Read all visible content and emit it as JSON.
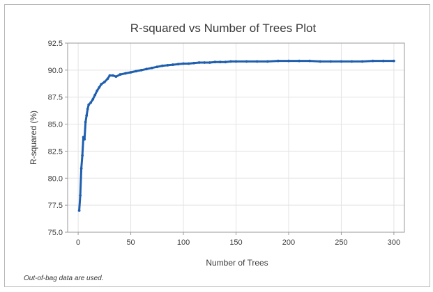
{
  "colors": {
    "series": "#1f5fae",
    "grid": "#e3e3e3",
    "axis": "#9a9a9a",
    "frame": "#b8b8b8"
  },
  "chart_data": {
    "type": "line",
    "title": "R-squared vs Number of Trees Plot",
    "xlabel": "Number of Trees",
    "ylabel": "R-squared (%)",
    "xlim": [
      -10,
      310
    ],
    "ylim": [
      75.0,
      92.5
    ],
    "xticks": [
      0,
      50,
      100,
      150,
      200,
      250,
      300
    ],
    "yticks": [
      75.0,
      77.5,
      80.0,
      82.5,
      85.0,
      87.5,
      90.0,
      92.5
    ],
    "xtick_labels": [
      "0",
      "50",
      "100",
      "150",
      "200",
      "250",
      "300"
    ],
    "ytick_labels": [
      "75.0",
      "77.5",
      "80.0",
      "82.5",
      "85.0",
      "87.5",
      "90.0",
      "92.5"
    ],
    "grid": true,
    "markers": true,
    "series": [
      {
        "x": [
          1,
          2,
          3,
          4,
          5,
          6,
          7,
          8,
          9,
          10,
          12,
          14,
          16,
          18,
          20,
          22,
          25,
          28,
          30,
          33,
          36,
          40,
          45,
          50,
          55,
          60,
          65,
          70,
          75,
          80,
          85,
          90,
          95,
          100,
          105,
          110,
          115,
          120,
          125,
          130,
          135,
          140,
          145,
          150,
          160,
          170,
          180,
          190,
          200,
          210,
          220,
          230,
          240,
          250,
          260,
          270,
          280,
          290,
          300
        ],
        "values": [
          77.0,
          78.4,
          80.9,
          82.1,
          83.8,
          83.6,
          85.2,
          85.8,
          86.4,
          86.8,
          87.0,
          87.3,
          87.7,
          88.1,
          88.4,
          88.7,
          88.9,
          89.2,
          89.5,
          89.5,
          89.4,
          89.6,
          89.7,
          89.8,
          89.9,
          90.0,
          90.1,
          90.2,
          90.3,
          90.4,
          90.45,
          90.5,
          90.55,
          90.6,
          90.6,
          90.65,
          90.7,
          90.7,
          90.7,
          90.75,
          90.75,
          90.75,
          90.8,
          90.8,
          90.8,
          90.8,
          90.8,
          90.85,
          90.85,
          90.85,
          90.85,
          90.8,
          90.8,
          90.8,
          90.8,
          90.8,
          90.85,
          90.85,
          90.85
        ]
      }
    ]
  },
  "footnote": "Out-of-bag data are used."
}
